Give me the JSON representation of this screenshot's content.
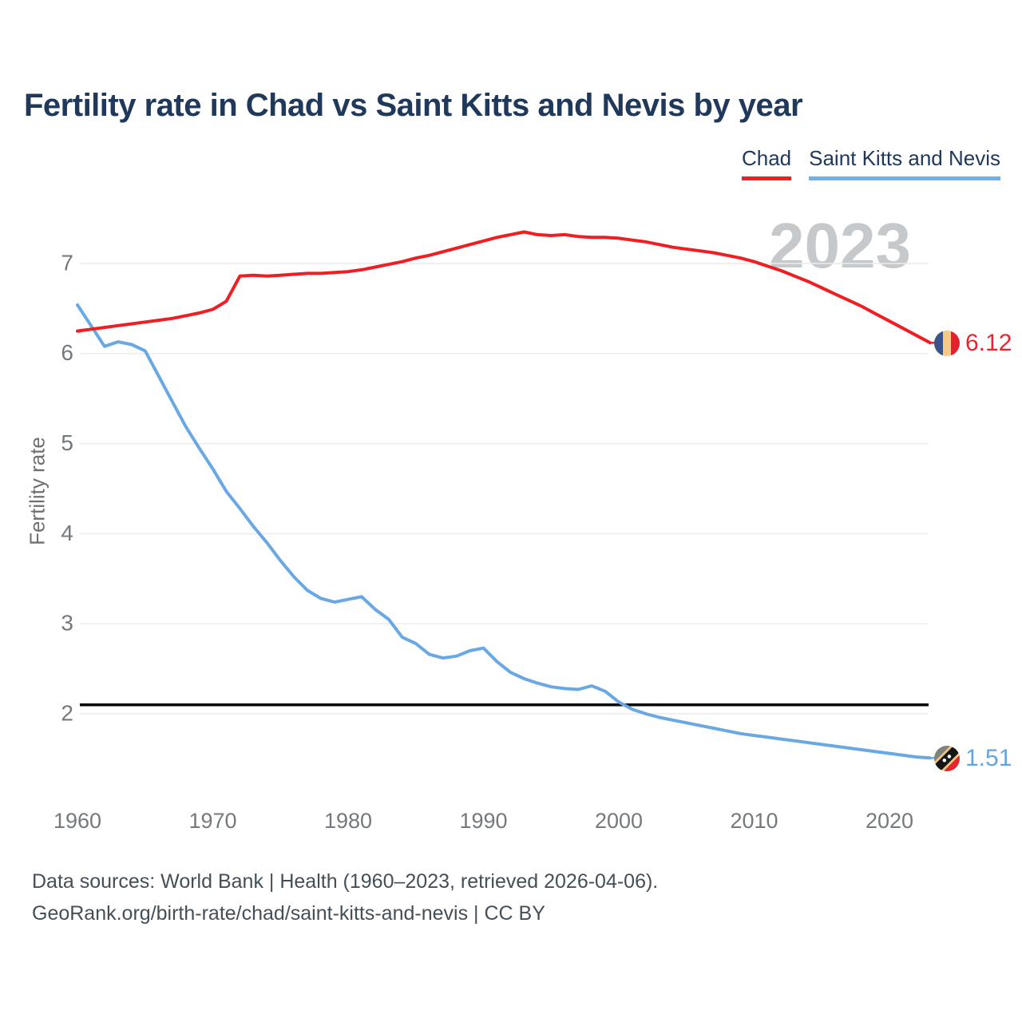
{
  "header": {
    "title": "Fertility rate in Chad vs Saint Kitts and Nevis by year"
  },
  "legend": {
    "items": [
      {
        "label": "Chad",
        "color": "#f01d23"
      },
      {
        "label": "Saint Kitts and Nevis",
        "color": "#6fb0e8"
      }
    ]
  },
  "chart": {
    "watermark": "2023",
    "y_axis_label": "Fertility rate"
  },
  "footer": {
    "line1": "Data sources: World Bank | Health (1960–2023, retrieved 2026-04-06).",
    "line2": "GeoRank.org/birth-rate/chad/saint-kitts-and-nevis | CC BY"
  },
  "colors": {
    "title": "#20395a",
    "chad_line": "#f01d23",
    "skn_line": "#69a8e3",
    "reference_line": "#000000",
    "grid": "#ececec",
    "axis_text": "#75797e",
    "watermark": "#c6c9cc",
    "chad_value_label": "#e8252d",
    "skn_value_label": "#64a4e0"
  },
  "icons": {
    "chad_flag": "chad-flag-circle (blue/yellow/red vertical stripes)",
    "skn_flag": "saint-kitts-and-nevis-flag-circle (green/red with black diagonal band and white stars)"
  },
  "chart_data": {
    "type": "line",
    "title": "Fertility rate in Chad vs Saint Kitts and Nevis by year",
    "xlabel": "",
    "ylabel": "Fertility rate",
    "grid": true,
    "legend_position": "top-right",
    "watermark": "2023",
    "x_range": [
      1960,
      2023
    ],
    "xticks": [
      1960,
      1970,
      1980,
      1990,
      2000,
      2010,
      2020
    ],
    "yticks": [
      2,
      3,
      4,
      5,
      6,
      7
    ],
    "ylim": [
      1.4,
      7.6
    ],
    "reference_line": {
      "value": 2.1,
      "color": "#000000"
    },
    "years": [
      1960,
      1961,
      1962,
      1963,
      1964,
      1965,
      1966,
      1967,
      1968,
      1969,
      1970,
      1971,
      1972,
      1973,
      1974,
      1975,
      1976,
      1977,
      1978,
      1979,
      1980,
      1981,
      1982,
      1983,
      1984,
      1985,
      1986,
      1987,
      1988,
      1989,
      1990,
      1991,
      1992,
      1993,
      1994,
      1995,
      1996,
      1997,
      1998,
      1999,
      2000,
      2001,
      2002,
      2003,
      2004,
      2005,
      2006,
      2007,
      2008,
      2009,
      2010,
      2011,
      2012,
      2013,
      2014,
      2015,
      2016,
      2017,
      2018,
      2019,
      2020,
      2021,
      2022,
      2023
    ],
    "series": [
      {
        "name": "Chad",
        "color": "#f01d23",
        "end_label": "6.12",
        "values": [
          6.25,
          6.27,
          6.29,
          6.31,
          6.33,
          6.35,
          6.37,
          6.39,
          6.42,
          6.45,
          6.49,
          6.58,
          6.86,
          6.87,
          6.86,
          6.87,
          6.88,
          6.89,
          6.89,
          6.9,
          6.91,
          6.93,
          6.96,
          6.99,
          7.02,
          7.06,
          7.09,
          7.13,
          7.17,
          7.21,
          7.25,
          7.29,
          7.32,
          7.35,
          7.32,
          7.31,
          7.32,
          7.3,
          7.29,
          7.29,
          7.28,
          7.26,
          7.24,
          7.21,
          7.18,
          7.16,
          7.14,
          7.12,
          7.09,
          7.06,
          7.02,
          6.97,
          6.92,
          6.86,
          6.8,
          6.73,
          6.66,
          6.59,
          6.52,
          6.44,
          6.36,
          6.28,
          6.2,
          6.12
        ]
      },
      {
        "name": "Saint Kitts and Nevis",
        "color": "#69a8e3",
        "end_label": "1.51",
        "values": [
          6.54,
          6.31,
          6.08,
          6.13,
          6.1,
          6.03,
          5.75,
          5.47,
          5.19,
          4.95,
          4.72,
          4.47,
          4.28,
          4.08,
          3.9,
          3.7,
          3.52,
          3.37,
          3.28,
          3.24,
          3.27,
          3.3,
          3.16,
          3.05,
          2.85,
          2.78,
          2.66,
          2.62,
          2.64,
          2.7,
          2.73,
          2.58,
          2.46,
          2.39,
          2.34,
          2.3,
          2.28,
          2.27,
          2.31,
          2.25,
          2.13,
          2.05,
          2.0,
          1.96,
          1.93,
          1.9,
          1.87,
          1.84,
          1.81,
          1.78,
          1.76,
          1.74,
          1.72,
          1.7,
          1.68,
          1.66,
          1.64,
          1.62,
          1.6,
          1.58,
          1.56,
          1.54,
          1.52,
          1.51
        ]
      }
    ]
  }
}
